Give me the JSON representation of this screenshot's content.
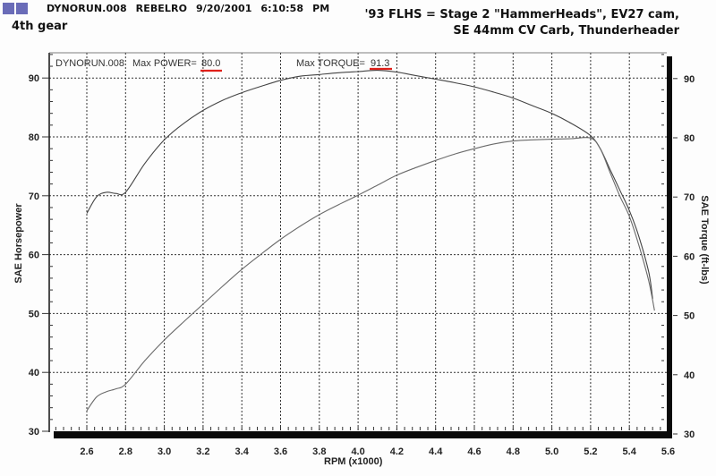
{
  "header": {
    "run_line": "DYNORUN.008   REBELRO  9/20/2001 6:10:58 PM",
    "gear": "4th gear",
    "description_line1": "'93 FLHS = Stage 2 \"HammerHeads\", EV27 cam,",
    "description_line2": "SE 44mm CV Carb, Thunderheader"
  },
  "annotations": {
    "run_id": "DYNORUN.008",
    "max_power_label": "Max POWER=",
    "max_power_value": "80.0",
    "max_torque_label": "Max TORQUE=",
    "max_torque_value": "91.3",
    "highlight_color": "#e0201a"
  },
  "chart_data": {
    "type": "line",
    "title": "",
    "xlabel": "RPM (x1000)",
    "ylabel": "SAE Horsepower",
    "y2label": "SAE Torque (ft-lbs)",
    "xlim": [
      2.43,
      5.6
    ],
    "ylim": [
      30,
      95
    ],
    "y2lim": [
      30,
      95
    ],
    "xticks": [
      2.6,
      2.8,
      3.0,
      3.2,
      3.4,
      3.6,
      3.8,
      4.0,
      4.2,
      4.4,
      4.6,
      4.8,
      5.0,
      5.2,
      5.4,
      5.6
    ],
    "yticks": [
      30,
      40,
      50,
      60,
      70,
      80,
      90
    ],
    "y2ticks": [
      30,
      40,
      50,
      60,
      70,
      80,
      90
    ],
    "grid": true,
    "legend": null,
    "series": [
      {
        "name": "SAE Torque (ft-lbs)",
        "axis": "right",
        "x": [
          2.6,
          2.65,
          2.7,
          2.75,
          2.8,
          2.9,
          3.0,
          3.1,
          3.2,
          3.3,
          3.4,
          3.5,
          3.6,
          3.7,
          3.8,
          3.9,
          4.0,
          4.1,
          4.2,
          4.3,
          4.4,
          4.5,
          4.6,
          4.7,
          4.8,
          4.9,
          5.0,
          5.1,
          5.2,
          5.25,
          5.3,
          5.35,
          5.4,
          5.45,
          5.5,
          5.52
        ],
        "values": [
          67.0,
          69.8,
          70.6,
          70.4,
          70.6,
          75.5,
          79.5,
          82.3,
          84.5,
          86.2,
          87.5,
          88.6,
          89.6,
          90.3,
          90.6,
          90.9,
          91.1,
          91.3,
          91.0,
          90.4,
          89.8,
          89.2,
          88.5,
          87.6,
          86.6,
          85.3,
          84.0,
          82.3,
          80.2,
          78.0,
          74.5,
          71.0,
          67.5,
          63.0,
          57.0,
          52.5
        ]
      },
      {
        "name": "SAE Horsepower",
        "axis": "left",
        "x": [
          2.6,
          2.65,
          2.7,
          2.75,
          2.8,
          2.9,
          3.0,
          3.1,
          3.2,
          3.3,
          3.4,
          3.5,
          3.6,
          3.7,
          3.8,
          3.9,
          4.0,
          4.1,
          4.2,
          4.3,
          4.4,
          4.5,
          4.6,
          4.7,
          4.8,
          4.9,
          5.0,
          5.1,
          5.2,
          5.25,
          5.3,
          5.35,
          5.4,
          5.45,
          5.5,
          5.53
        ],
        "values": [
          33.5,
          35.8,
          36.7,
          37.2,
          38.0,
          42.0,
          45.5,
          48.6,
          51.6,
          54.6,
          57.5,
          60.1,
          62.6,
          64.8,
          66.8,
          68.5,
          70.1,
          71.8,
          73.5,
          74.8,
          76.0,
          77.1,
          78.0,
          78.8,
          79.3,
          79.5,
          79.6,
          79.7,
          79.8,
          78.0,
          74.0,
          70.0,
          66.5,
          61.5,
          55.5,
          50.5
        ]
      }
    ]
  }
}
